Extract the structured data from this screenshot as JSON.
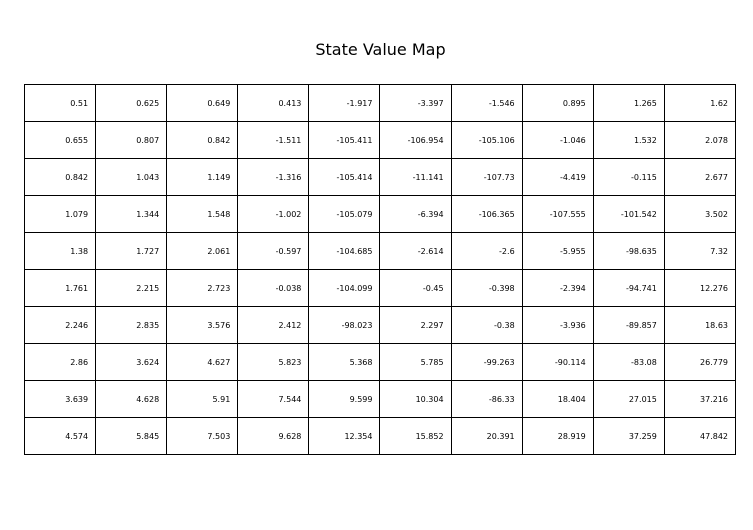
{
  "chart_data": {
    "type": "table",
    "title": "State Value Map",
    "rows": [
      [
        "0.51",
        "0.625",
        "0.649",
        "0.413",
        "-1.917",
        "-3.397",
        "-1.546",
        "0.895",
        "1.265",
        "1.62"
      ],
      [
        "0.655",
        "0.807",
        "0.842",
        "-1.511",
        "-105.411",
        "-106.954",
        "-105.106",
        "-1.046",
        "1.532",
        "2.078"
      ],
      [
        "0.842",
        "1.043",
        "1.149",
        "-1.316",
        "-105.414",
        "-11.141",
        "-107.73",
        "-4.419",
        "-0.115",
        "2.677"
      ],
      [
        "1.079",
        "1.344",
        "1.548",
        "-1.002",
        "-105.079",
        "-6.394",
        "-106.365",
        "-107.555",
        "-101.542",
        "3.502"
      ],
      [
        "1.38",
        "1.727",
        "2.061",
        "-0.597",
        "-104.685",
        "-2.614",
        "-2.6",
        "-5.955",
        "-98.635",
        "7.32"
      ],
      [
        "1.761",
        "2.215",
        "2.723",
        "-0.038",
        "-104.099",
        "-0.45",
        "-0.398",
        "-2.394",
        "-94.741",
        "12.276"
      ],
      [
        "2.246",
        "2.835",
        "3.576",
        "2.412",
        "-98.023",
        "2.297",
        "-0.38",
        "-3.936",
        "-89.857",
        "18.63"
      ],
      [
        "2.86",
        "3.624",
        "4.627",
        "5.823",
        "5.368",
        "5.785",
        "-99.263",
        "-90.114",
        "-83.08",
        "26.779"
      ],
      [
        "3.639",
        "4.628",
        "5.91",
        "7.544",
        "9.599",
        "10.304",
        "-86.33",
        "18.404",
        "27.015",
        "37.216"
      ],
      [
        "4.574",
        "5.845",
        "7.503",
        "9.628",
        "12.354",
        "15.852",
        "20.391",
        "28.919",
        "37.259",
        "47.842"
      ]
    ]
  }
}
